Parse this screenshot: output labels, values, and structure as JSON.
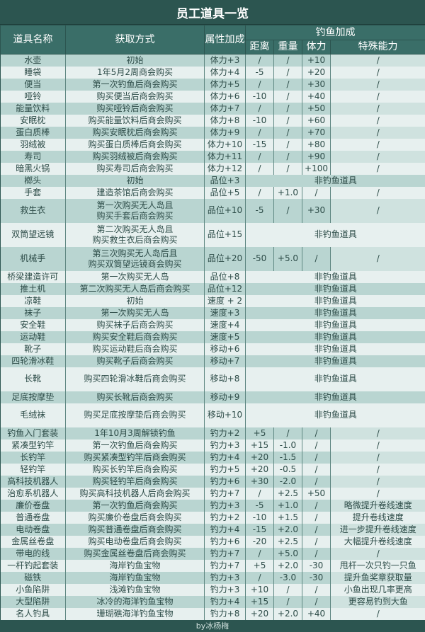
{
  "title": "员工道具一览",
  "headers": {
    "name": "道具名称",
    "method": "获取方式",
    "attr": "属性加成",
    "fishing": "钓鱼加成",
    "distance": "距离",
    "weight": "重量",
    "stamina": "体力",
    "special": "特殊能力"
  },
  "non_fishing_label": "非钓鱼道具",
  "rows": [
    {
      "name": "水壶",
      "method": [
        "初始"
      ],
      "attr": "体力+3",
      "fish": [
        "/",
        "/",
        "+10",
        "/"
      ]
    },
    {
      "name": "睡袋",
      "method": [
        "1年5月2周商会购买"
      ],
      "attr": "体力+4",
      "fish": [
        "-5",
        "/",
        "+20",
        "/"
      ]
    },
    {
      "name": "便当",
      "method": [
        "第一次钓鱼后商会购买"
      ],
      "attr": "体力+5",
      "fish": [
        "/",
        "/",
        "+30",
        "/"
      ]
    },
    {
      "name": "哑铃",
      "method": [
        "购买便当后商会购买"
      ],
      "attr": "体力+6",
      "fish": [
        "-10",
        "/",
        "+40",
        "/"
      ]
    },
    {
      "name": "能量饮料",
      "method": [
        "购买哑铃后商会购买"
      ],
      "attr": "体力+7",
      "fish": [
        "/",
        "/",
        "+50",
        "/"
      ]
    },
    {
      "name": "安眠枕",
      "method": [
        "购买能量饮料后商会购买"
      ],
      "attr": "体力+8",
      "fish": [
        "-10",
        "/",
        "+60",
        "/"
      ]
    },
    {
      "name": "蛋白质棒",
      "method": [
        "购买安眠枕后商会购买"
      ],
      "attr": "体力+9",
      "fish": [
        "/",
        "/",
        "+70",
        "/"
      ]
    },
    {
      "name": "羽绒被",
      "method": [
        "购买蛋白质棒后商会购买"
      ],
      "attr": "体力+10",
      "fish": [
        "-15",
        "/",
        "+80",
        "/"
      ]
    },
    {
      "name": "寿司",
      "method": [
        "购买羽绒被后商会购买"
      ],
      "attr": "体力+11",
      "fish": [
        "/",
        "/",
        "+90",
        "/"
      ]
    },
    {
      "name": "暗黑火锅",
      "method": [
        "购买寿司后商会购买"
      ],
      "attr": "体力+12",
      "fish": [
        "/",
        "/",
        "+100",
        "/"
      ]
    },
    {
      "name": "榔头",
      "method": [
        "初始"
      ],
      "attr": "品位+3",
      "fish": null
    },
    {
      "name": "手套",
      "method": [
        "建造茶馆后商会购买"
      ],
      "attr": "品位+5",
      "fish": [
        "/",
        "+1.0",
        "/",
        "/"
      ]
    },
    {
      "name": "救生衣",
      "method": [
        "第一次购买无人岛且",
        "购买手套后商会购买"
      ],
      "attr": "品位+10",
      "fish": [
        "-5",
        "/",
        "+30",
        "/"
      ]
    },
    {
      "name": "双筒望远镜",
      "method": [
        "第二次购买无人岛且",
        "购买救生衣后商会购买"
      ],
      "attr": "品位+15",
      "fish": null
    },
    {
      "name": "机械手",
      "method": [
        "第三次购买无人岛后且",
        "购买双筒望远镜商会购买"
      ],
      "attr": "品位+20",
      "fish": [
        "-50",
        "+5.0",
        "/",
        "/"
      ]
    },
    {
      "name": "桥梁建造许可",
      "method": [
        "第一次购买无人岛"
      ],
      "attr": "品位+8",
      "fish": null
    },
    {
      "name": "推土机",
      "method": [
        "第二次购买无人岛后商会购买"
      ],
      "attr": "品位+12",
      "fish": null
    },
    {
      "name": "凉鞋",
      "method": [
        "初始"
      ],
      "attr": "速度 + 2",
      "fish": null
    },
    {
      "name": "袜子",
      "method": [
        "第一次购买无人岛"
      ],
      "attr": "速度+3",
      "fish": null
    },
    {
      "name": "安全鞋",
      "method": [
        "购买袜子后商会购买"
      ],
      "attr": "速度+4",
      "fish": null
    },
    {
      "name": "运动鞋",
      "method": [
        "购买安全鞋后商会购买"
      ],
      "attr": "速度+5",
      "fish": null
    },
    {
      "name": "靴子",
      "method": [
        "购买运动鞋后商会购买"
      ],
      "attr": "移动+6",
      "fish": null
    },
    {
      "name": "四轮滑冰鞋",
      "method": [
        "购买靴子后商会购买"
      ],
      "attr": "移动+7",
      "fish": null
    },
    {
      "name": "长靴",
      "method": [
        "购买四轮滑冰鞋后商会购买"
      ],
      "attr": "移动+8",
      "fish": null
    },
    {
      "name": "足底按摩垫",
      "method": [
        "购买长靴后商会购买"
      ],
      "attr": "移动+9",
      "fish": null
    },
    {
      "name": "毛绒袜",
      "method": [
        "购买足底按摩垫后商会购买"
      ],
      "attr": "移动+10",
      "fish": null
    },
    {
      "name": "钓鱼入门套装",
      "method": [
        "1年10月3周解锁钓鱼"
      ],
      "attr": "钓力+2",
      "fish": [
        "+5",
        "/",
        "/",
        "/"
      ]
    },
    {
      "name": "紧凑型钓竿",
      "method": [
        "第一次钓鱼后商会购买"
      ],
      "attr": "钓力+3",
      "fish": [
        "+15",
        "-1.0",
        "/",
        "/"
      ]
    },
    {
      "name": "长钓竿",
      "method": [
        "购买紧凑型钓竿后商会购买"
      ],
      "attr": "钓力+4",
      "fish": [
        "+20",
        "-1.5",
        "/",
        "/"
      ]
    },
    {
      "name": "轻钓竿",
      "method": [
        "购买长钓竿后商会购买"
      ],
      "attr": "钓力+5",
      "fish": [
        "+20",
        "-0.5",
        "/",
        "/"
      ]
    },
    {
      "name": "高科技机器人",
      "method": [
        "购买轻钓竿后商会购买"
      ],
      "attr": "钓力+6",
      "fish": [
        "+30",
        "-2.0",
        "/",
        "/"
      ]
    },
    {
      "name": "治愈系机器人",
      "method": [
        "购买高科技机器人后商会购买"
      ],
      "attr": "钓力+7",
      "fish": [
        "/",
        "+2.5",
        "+50",
        "/"
      ]
    },
    {
      "name": "廉价卷盘",
      "method": [
        "第一次钓鱼后商会购买"
      ],
      "attr": "钓力+3",
      "fish": [
        "-5",
        "+1.0",
        "/",
        "略微提升卷线速度"
      ]
    },
    {
      "name": "普通卷盘",
      "method": [
        "购买廉价卷盘后商会购买"
      ],
      "attr": "钓力+2",
      "fish": [
        "-10",
        "+1.5",
        "/",
        "提升卷线速度"
      ]
    },
    {
      "name": "电动卷盘",
      "method": [
        "购买普通卷盘后商会购买"
      ],
      "attr": "钓力+4",
      "fish": [
        "-15",
        "+2.0",
        "/",
        "进一步提升卷线速度"
      ]
    },
    {
      "name": "金属丝卷盘",
      "method": [
        "购买电动卷盘后商会购买"
      ],
      "attr": "钓力+6",
      "fish": [
        "-20",
        "+2.5",
        "/",
        "大幅提升卷线速度"
      ]
    },
    {
      "name": "带电的线",
      "method": [
        "购买金属丝卷盘后商会购买"
      ],
      "attr": "钓力+7",
      "fish": [
        "/",
        "+5.0",
        "/",
        "/"
      ]
    },
    {
      "name": "一杆钓起套装",
      "method": [
        "海岸钓鱼宝物"
      ],
      "attr": "钓力+7",
      "fish": [
        "+5",
        "+2.0",
        "-30",
        "甩杆一次只钓一只鱼"
      ]
    },
    {
      "name": "磁铁",
      "method": [
        "海岸钓鱼宝物"
      ],
      "attr": "钓力+3",
      "fish": [
        "/",
        "-3.0",
        "-30",
        "提升鱼奖章获取量"
      ]
    },
    {
      "name": "小鱼陷阱",
      "method": [
        "浅滩钓鱼宝物"
      ],
      "attr": "钓力+3",
      "fish": [
        "+10",
        "/",
        "/",
        "小鱼出现几率更高"
      ]
    },
    {
      "name": "大型陷阱",
      "method": [
        "冰冷的海洋钓鱼宝物"
      ],
      "attr": "钓力+4",
      "fish": [
        "+15",
        "/",
        "/",
        "更容易钓到大鱼"
      ]
    },
    {
      "name": "名人钓具",
      "method": [
        "珊瑚礁海洋钓鱼宝物"
      ],
      "attr": "钓力+8",
      "fish": [
        "+20",
        "+2.0",
        "+40",
        "/"
      ]
    }
  ],
  "footer": "by冰杨梅"
}
